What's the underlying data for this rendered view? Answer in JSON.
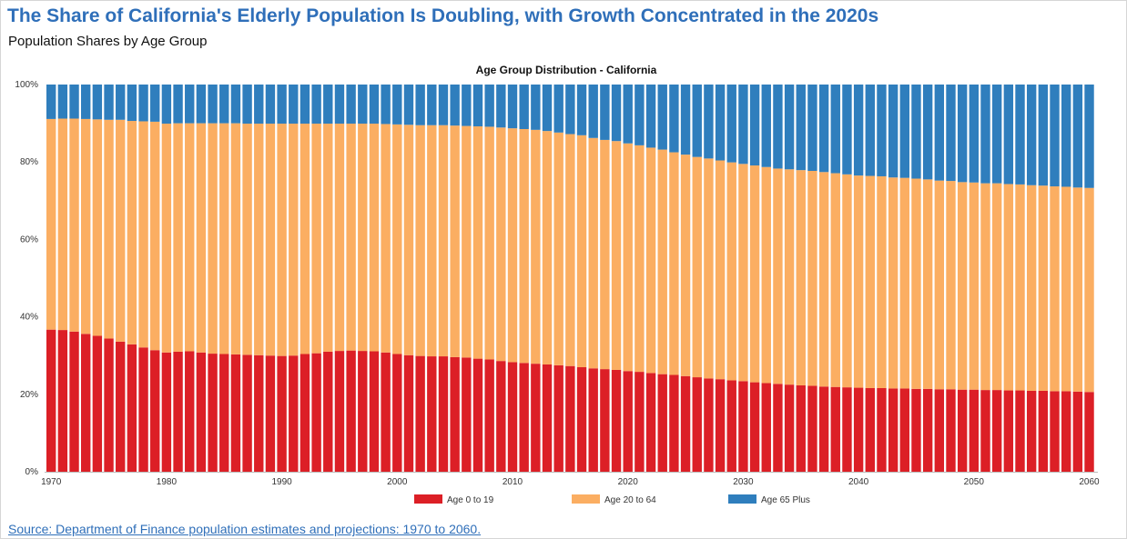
{
  "page": {
    "title": "The Share of California's Elderly Population Is Doubling, with Growth Concentrated in the 2020s",
    "subtitle": "Population Shares by Age Group",
    "source": "Source: Department of Finance population estimates and projections: 1970 to 2060."
  },
  "chart_data": {
    "type": "bar",
    "stacked": true,
    "normalized": true,
    "title": "Age Group Distribution - California",
    "xlabel": "",
    "ylabel": "",
    "x_start": 1970,
    "x_end": 2060,
    "x_ticks": [
      "1970",
      "1980",
      "1990",
      "2000",
      "2010",
      "2020",
      "2030",
      "2040",
      "2050",
      "2060"
    ],
    "y_ticks": [
      "0%",
      "20%",
      "40%",
      "60%",
      "80%",
      "100%"
    ],
    "ylim": [
      0,
      100
    ],
    "grid": false,
    "legend_position": "bottom",
    "series": [
      {
        "name": "Age 0 to 19",
        "color": "#dc1f26",
        "values": [
          36.7,
          36.6,
          36.2,
          35.6,
          35.1,
          34.4,
          33.6,
          32.9,
          32.1,
          31.4,
          30.8,
          31.0,
          31.1,
          30.8,
          30.5,
          30.4,
          30.3,
          30.2,
          30.1,
          30.0,
          29.9,
          30.0,
          30.4,
          30.6,
          31.0,
          31.2,
          31.3,
          31.2,
          31.1,
          30.8,
          30.4,
          30.1,
          29.9,
          29.8,
          29.8,
          29.6,
          29.5,
          29.2,
          29.0,
          28.6,
          28.3,
          28.1,
          27.9,
          27.7,
          27.5,
          27.3,
          27.0,
          26.7,
          26.5,
          26.3,
          26.0,
          25.8,
          25.5,
          25.2,
          25.0,
          24.7,
          24.4,
          24.1,
          23.9,
          23.6,
          23.4,
          23.1,
          22.9,
          22.7,
          22.5,
          22.3,
          22.2,
          22.0,
          21.9,
          21.8,
          21.7,
          21.6,
          21.6,
          21.5,
          21.5,
          21.4,
          21.4,
          21.3,
          21.3,
          21.2,
          21.2,
          21.1,
          21.1,
          21.0,
          21.0,
          20.9,
          20.9,
          20.8,
          20.8,
          20.7,
          20.6
        ]
      },
      {
        "name": "Age 20 to 64",
        "color": "#fbae62",
        "values": [
          54.4,
          54.6,
          55.0,
          55.5,
          55.9,
          56.5,
          57.3,
          57.7,
          58.4,
          59.0,
          59.1,
          59.0,
          58.9,
          59.2,
          59.5,
          59.6,
          59.7,
          59.7,
          59.8,
          59.9,
          60.0,
          59.9,
          59.5,
          59.3,
          58.9,
          58.7,
          58.6,
          58.7,
          58.8,
          59.0,
          59.3,
          59.5,
          59.6,
          59.7,
          59.7,
          59.8,
          59.8,
          60.0,
          60.1,
          60.3,
          60.4,
          60.4,
          60.4,
          60.3,
          60.1,
          59.9,
          59.9,
          59.5,
          59.2,
          59.1,
          58.8,
          58.5,
          58.2,
          58.0,
          57.5,
          57.2,
          56.9,
          56.8,
          56.5,
          56.3,
          56.1,
          56.0,
          55.8,
          55.6,
          55.6,
          55.6,
          55.5,
          55.4,
          55.2,
          55.0,
          54.8,
          54.8,
          54.7,
          54.5,
          54.4,
          54.3,
          54.1,
          53.9,
          53.8,
          53.6,
          53.5,
          53.4,
          53.4,
          53.3,
          53.2,
          53.1,
          53.0,
          52.9,
          52.8,
          52.7,
          52.7
        ]
      },
      {
        "name": "Age 65 Plus",
        "color": "#2f7ebd",
        "values": [
          8.9,
          8.8,
          8.8,
          8.9,
          9.0,
          9.1,
          9.1,
          9.4,
          9.5,
          9.6,
          10.1,
          10.0,
          10.0,
          10.0,
          10.0,
          10.0,
          10.0,
          10.1,
          10.1,
          10.1,
          10.1,
          10.1,
          10.1,
          10.1,
          10.1,
          10.1,
          10.1,
          10.1,
          10.1,
          10.2,
          10.3,
          10.4,
          10.5,
          10.5,
          10.5,
          10.6,
          10.7,
          10.8,
          10.9,
          11.1,
          11.3,
          11.5,
          11.7,
          12.0,
          12.4,
          12.8,
          13.1,
          13.8,
          14.3,
          14.6,
          15.2,
          15.7,
          16.3,
          16.8,
          17.5,
          18.1,
          18.7,
          19.1,
          19.6,
          20.1,
          20.5,
          20.9,
          21.3,
          21.7,
          21.9,
          22.1,
          22.3,
          22.6,
          22.9,
          23.2,
          23.5,
          23.6,
          23.7,
          24.0,
          24.1,
          24.3,
          24.5,
          24.8,
          24.9,
          25.2,
          25.3,
          25.5,
          25.5,
          25.7,
          25.8,
          26.0,
          26.1,
          26.3,
          26.4,
          26.6,
          26.7
        ]
      }
    ]
  }
}
